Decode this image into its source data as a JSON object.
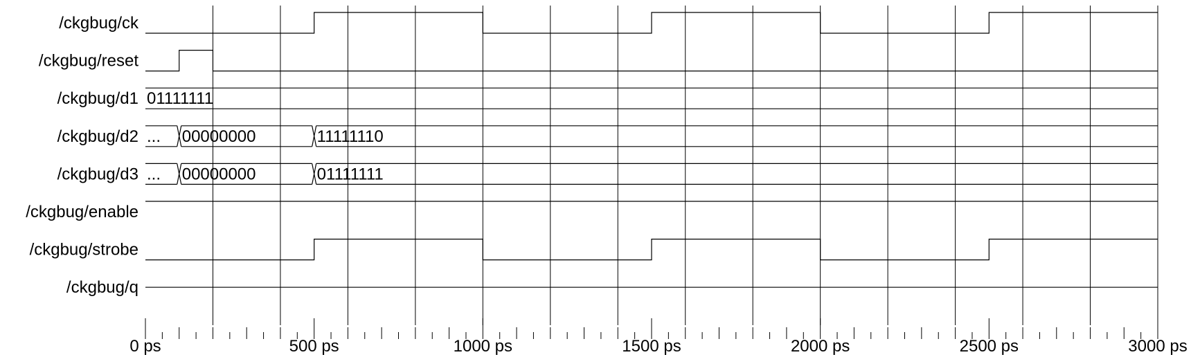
{
  "time_axis": {
    "start": 0,
    "end": 3000,
    "unit": "ps",
    "grid_times": [
      200,
      400,
      600,
      800,
      1000,
      1200,
      1400,
      1600,
      1800,
      2000,
      2200,
      2400,
      2600,
      2800,
      3000
    ],
    "minor_tick_step": 50,
    "labels": [
      {
        "time": 0,
        "text": "0 ps"
      },
      {
        "time": 500,
        "text": "500 ps"
      },
      {
        "time": 1000,
        "text": "1000 ps"
      },
      {
        "time": 1500,
        "text": "1500 ps"
      },
      {
        "time": 2000,
        "text": "2000 ps"
      },
      {
        "time": 2500,
        "text": "2500 ps"
      },
      {
        "time": 3000,
        "text": "3000 ps"
      }
    ]
  },
  "signals": [
    {
      "name": "/ckgbug/ck",
      "type": "bit",
      "transitions": [
        {
          "t": 0,
          "v": 0
        },
        {
          "t": 500,
          "v": 1
        },
        {
          "t": 1000,
          "v": 0
        },
        {
          "t": 1500,
          "v": 1
        },
        {
          "t": 2000,
          "v": 0
        },
        {
          "t": 2500,
          "v": 1
        }
      ]
    },
    {
      "name": "/ckgbug/reset",
      "type": "bit",
      "transitions": [
        {
          "t": 0,
          "v": 0
        },
        {
          "t": 100,
          "v": 1
        },
        {
          "t": 200,
          "v": 0
        }
      ]
    },
    {
      "name": "/ckgbug/d1",
      "type": "bus",
      "segments": [
        {
          "t": 0,
          "text": "01111111"
        }
      ]
    },
    {
      "name": "/ckgbug/d2",
      "type": "bus",
      "segments": [
        {
          "t": 0,
          "text": "..."
        },
        {
          "t": 100,
          "text": "00000000"
        },
        {
          "t": 500,
          "text": "11111110"
        }
      ]
    },
    {
      "name": "/ckgbug/d3",
      "type": "bus",
      "segments": [
        {
          "t": 0,
          "text": "..."
        },
        {
          "t": 100,
          "text": "00000000"
        },
        {
          "t": 500,
          "text": "01111111"
        }
      ]
    },
    {
      "name": "/ckgbug/enable",
      "type": "bit",
      "transitions": [
        {
          "t": 0,
          "v": 1
        }
      ]
    },
    {
      "name": "/ckgbug/strobe",
      "type": "bit",
      "transitions": [
        {
          "t": 0,
          "v": 0
        },
        {
          "t": 500,
          "v": 1
        },
        {
          "t": 1000,
          "v": 0
        },
        {
          "t": 1500,
          "v": 1
        },
        {
          "t": 2000,
          "v": 0
        },
        {
          "t": 2500,
          "v": 1
        }
      ]
    },
    {
      "name": "/ckgbug/q",
      "type": "bit",
      "transitions": [
        {
          "t": 0,
          "v": 0.5
        }
      ]
    }
  ]
}
